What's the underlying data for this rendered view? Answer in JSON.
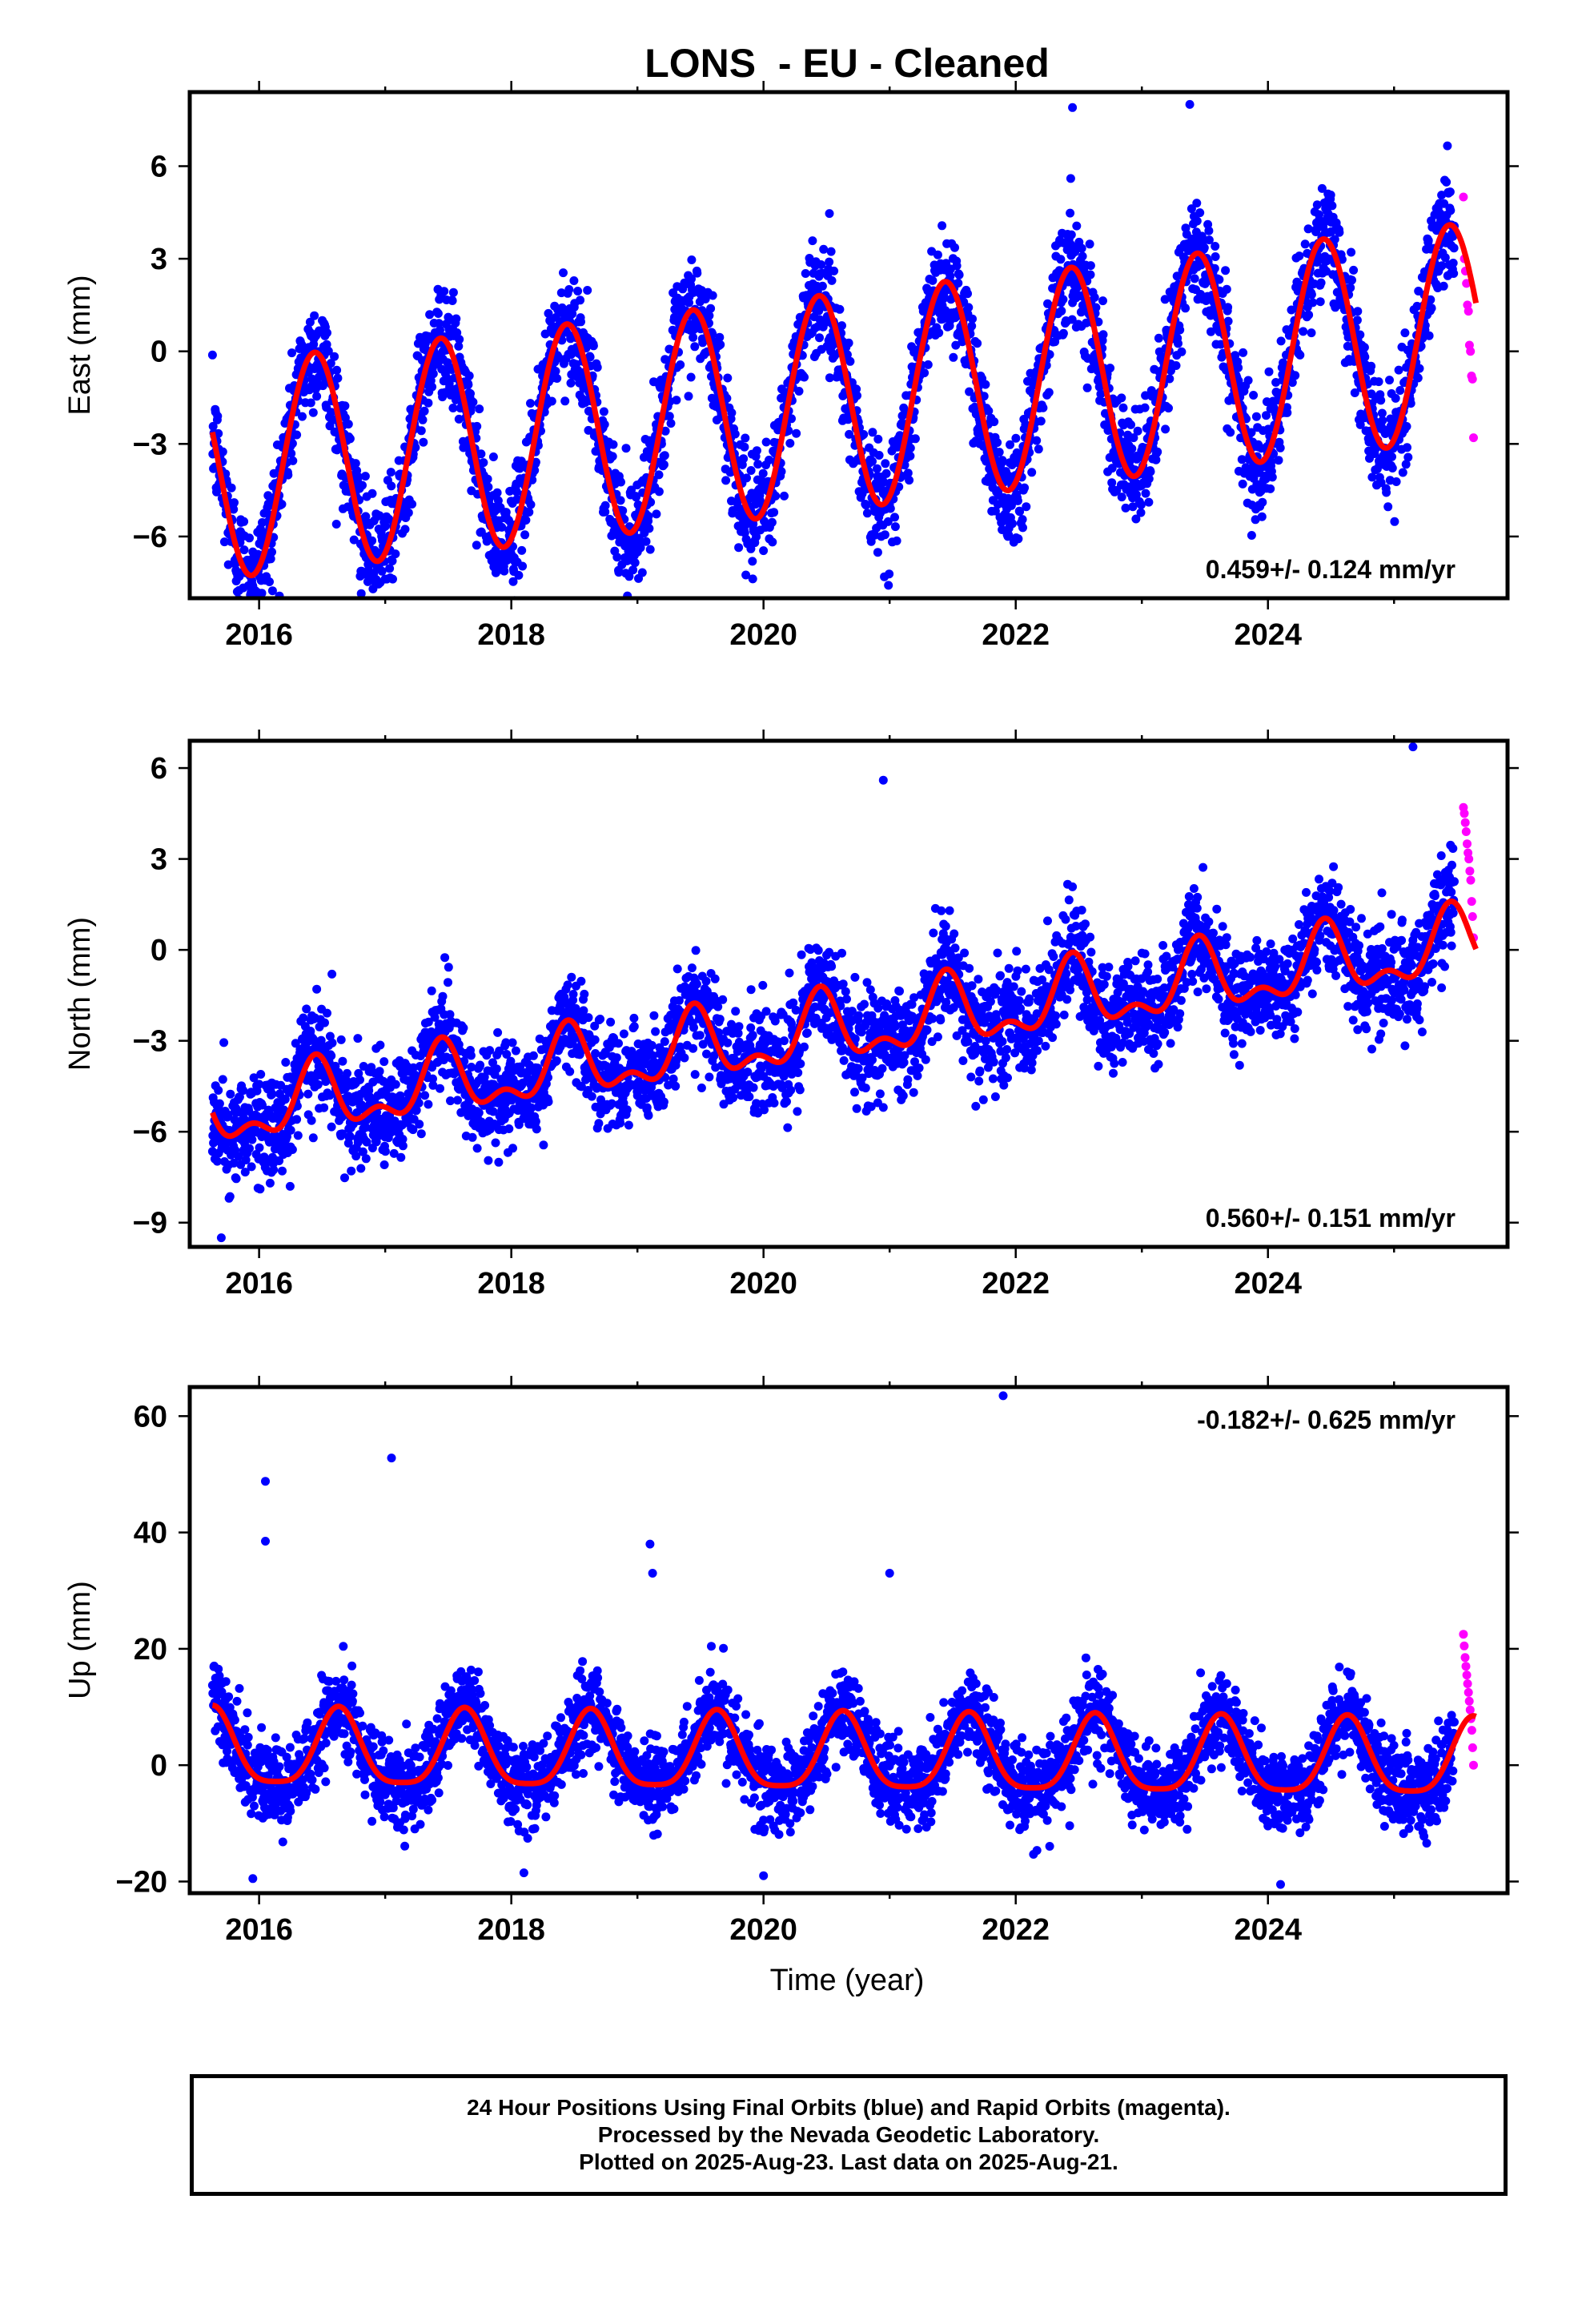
{
  "title": "LONS  - EU - Cleaned",
  "xlabel": "Time (year)",
  "colors": {
    "final": "#0000ff",
    "rapid": "#ff00ff",
    "fit": "#ff0000",
    "axes": "#000000"
  },
  "caption": {
    "line1": "24 Hour Positions Using Final Orbits (blue) and Rapid Orbits (magenta).",
    "line2": "Processed by the Nevada Geodetic Laboratory.",
    "line3": "Plotted on 2025-Aug-23. Last data on 2025-Aug-21."
  },
  "chart_data": [
    {
      "type": "scatter",
      "ylabel": "East (mm)",
      "rate_label": "0.459+/- 0.124 mm/yr",
      "xlim": [
        2015.45,
        2025.9
      ],
      "ylim": [
        -8,
        8.4
      ],
      "xticks": [
        "2016",
        "2018",
        "2020",
        "2022",
        "2024"
      ],
      "yticks": [
        "-6",
        "-3",
        "0",
        "3",
        "6"
      ],
      "model": {
        "t0": 2015.63,
        "t1": 2025.48,
        "t_end": 2025.65,
        "offset": -1.9,
        "trend": 0.459,
        "annual_amp": 3.5,
        "annual_peak": 0.44,
        "semiannual_amp": 0.0,
        "noise": 0.9
      },
      "rapid": {
        "t0": 2025.55,
        "t1": 2025.63,
        "values": [
          5.0,
          3.0,
          2.6,
          2.2,
          1.5,
          1.3,
          0.2,
          0.0,
          -0.8,
          -0.9,
          -2.8
        ]
      },
      "outliers": [
        {
          "x": 2015.95,
          "y": -7.6
        },
        {
          "x": 2016.93,
          "y": -7.4
        },
        {
          "x": 2022.45,
          "y": 7.9
        },
        {
          "x": 2023.38,
          "y": 8.0
        },
        {
          "x": 2023.8,
          "y": -4.3
        },
        {
          "x": 2019.9,
          "y": -6.4
        },
        {
          "x": 2018.85,
          "y": -7.1
        }
      ]
    },
    {
      "type": "scatter",
      "ylabel": "North (mm)",
      "rate_label": "0.560+/- 0.151 mm/yr",
      "xlim": [
        2015.45,
        2025.9
      ],
      "ylim": [
        -9.8,
        6.9
      ],
      "xticks": [
        "2016",
        "2018",
        "2020",
        "2022",
        "2024"
      ],
      "yticks": [
        "-9",
        "-6",
        "-3",
        "0",
        "3",
        "6"
      ],
      "model": {
        "t0": 2015.63,
        "t1": 2025.48,
        "t_end": 2025.65,
        "offset": -3.0,
        "trend": 0.56,
        "annual_amp": 1.0,
        "annual_peak": 0.45,
        "semiannual_amp": 0.55,
        "noise": 0.85
      },
      "rapid": {
        "t0": 2025.55,
        "t1": 2025.63,
        "values": [
          4.7,
          4.5,
          4.2,
          3.9,
          3.5,
          3.2,
          3.0,
          2.6,
          2.3,
          1.6,
          1.1,
          0.4
        ]
      },
      "outliers": [
        {
          "x": 2015.7,
          "y": -9.5
        },
        {
          "x": 2016.25,
          "y": -6.5
        },
        {
          "x": 2020.95,
          "y": 5.6
        },
        {
          "x": 2020.95,
          "y": -5.2
        },
        {
          "x": 2024.75,
          "y": -2.0
        },
        {
          "x": 2025.15,
          "y": 6.7
        },
        {
          "x": 2022.9,
          "y": -3.1
        }
      ]
    },
    {
      "type": "scatter",
      "ylabel": "Up (mm)",
      "rate_label": "-0.182+/- 0.625 mm/yr",
      "xlim": [
        2015.45,
        2025.9
      ],
      "ylim": [
        -22,
        65
      ],
      "xticks": [
        "2016",
        "2018",
        "2020",
        "2022",
        "2024"
      ],
      "yticks": [
        "-20",
        "0",
        "20",
        "40",
        "60"
      ],
      "model": {
        "t0": 2015.63,
        "t1": 2025.48,
        "t_end": 2025.65,
        "offset": 1.5,
        "trend": -0.182,
        "annual_amp": 6.5,
        "annual_peak": 0.63,
        "semiannual_amp": 1.5,
        "noise": 3.6
      },
      "rapid": {
        "t0": 2025.55,
        "t1": 2025.63,
        "values": [
          22.5,
          20.5,
          18.5,
          17.0,
          15.5,
          14.0,
          12.5,
          11.0,
          9.5,
          8.0,
          6.0,
          3.0,
          0.0
        ]
      },
      "outliers": [
        {
          "x": 2016.05,
          "y": 48.8
        },
        {
          "x": 2016.05,
          "y": 38.5
        },
        {
          "x": 2017.05,
          "y": 52.8
        },
        {
          "x": 2019.1,
          "y": 38.0
        },
        {
          "x": 2019.12,
          "y": 33.0
        },
        {
          "x": 2021.0,
          "y": 33.0
        },
        {
          "x": 2021.9,
          "y": 63.5
        },
        {
          "x": 2015.95,
          "y": -19.5
        },
        {
          "x": 2018.1,
          "y": -18.5
        },
        {
          "x": 2020.0,
          "y": -19.0
        },
        {
          "x": 2024.1,
          "y": -20.5
        }
      ]
    }
  ]
}
